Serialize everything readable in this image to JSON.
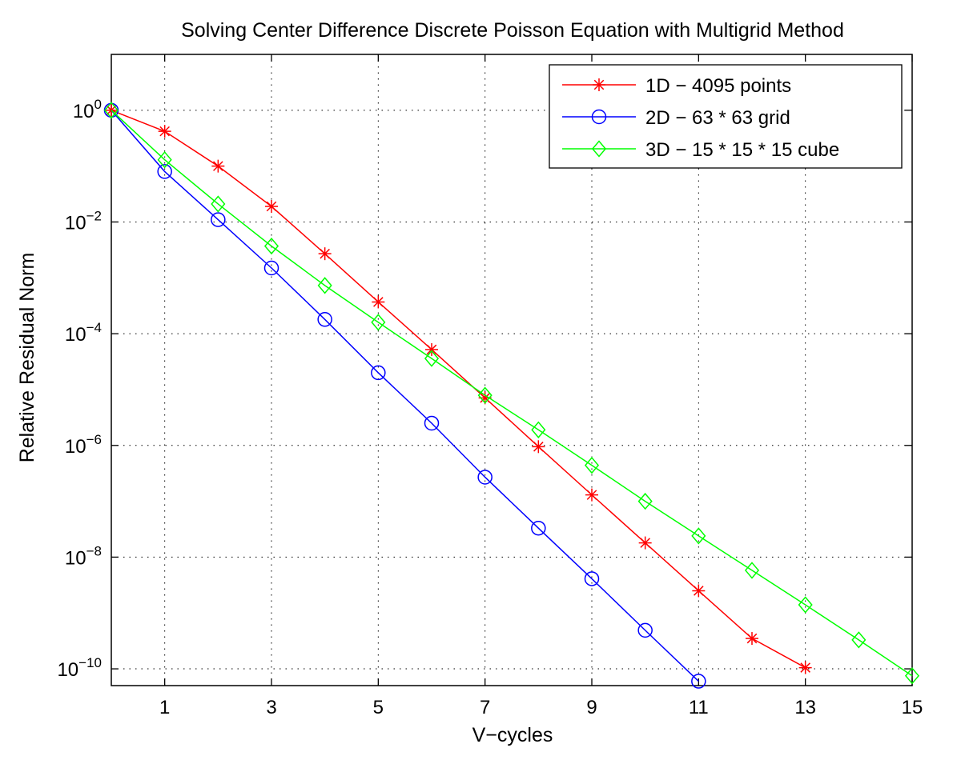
{
  "chart_data": {
    "type": "line",
    "title": "Solving Center Difference Discrete Poisson Equation with Multigrid Method",
    "xlabel": "V−cycles",
    "ylabel": "Relative Residual Norm",
    "xlim": [
      0,
      15
    ],
    "ylim_log10": [
      -10.3,
      1
    ],
    "y_scale": "log",
    "grid": true,
    "legend_position": "top-right",
    "x_ticks": [
      1,
      3,
      5,
      7,
      9,
      11,
      13,
      15
    ],
    "y_ticks": [
      {
        "base": "10",
        "exp": "0",
        "log10": 0
      },
      {
        "base": "10",
        "exp": "−2",
        "log10": -2
      },
      {
        "base": "10",
        "exp": "−4",
        "log10": -4
      },
      {
        "base": "10",
        "exp": "−6",
        "log10": -6
      },
      {
        "base": "10",
        "exp": "−8",
        "log10": -8
      },
      {
        "base": "10",
        "exp": "−10",
        "log10": -10
      }
    ],
    "series": [
      {
        "name": "1D − 4095 points",
        "color": "#ff0000",
        "marker": "asterisk",
        "x": [
          0,
          1,
          2,
          3,
          4,
          5,
          6,
          7,
          8,
          9,
          10,
          11,
          12,
          13
        ],
        "values": [
          1,
          0.42,
          0.1,
          0.019,
          0.0027,
          0.00037,
          5.2e-05,
          7.1e-06,
          9.5e-07,
          1.3e-07,
          1.8e-08,
          2.5e-09,
          3.5e-10,
          1.05e-10
        ]
      },
      {
        "name": "2D − 63 * 63 grid",
        "color": "#0000ff",
        "marker": "circle",
        "x": [
          0,
          1,
          2,
          3,
          4,
          5,
          6,
          7,
          8,
          9,
          10,
          11
        ],
        "values": [
          1,
          0.08,
          0.011,
          0.0015,
          0.00018,
          2e-05,
          2.5e-06,
          2.7e-07,
          3.3e-08,
          4.1e-09,
          4.9e-10,
          6e-11
        ]
      },
      {
        "name": "3D − 15 * 15 * 15 cube",
        "color": "#00ff00",
        "marker": "diamond",
        "x": [
          0,
          1,
          2,
          3,
          4,
          5,
          6,
          7,
          8,
          9,
          10,
          11,
          12,
          13,
          14,
          15
        ],
        "values": [
          1,
          0.13,
          0.021,
          0.0037,
          0.00073,
          0.00016,
          3.6e-05,
          7.9e-06,
          1.9e-06,
          4.4e-07,
          1e-07,
          2.4e-08,
          5.8e-09,
          1.4e-09,
          3.3e-10,
          7.5e-11
        ]
      }
    ]
  }
}
